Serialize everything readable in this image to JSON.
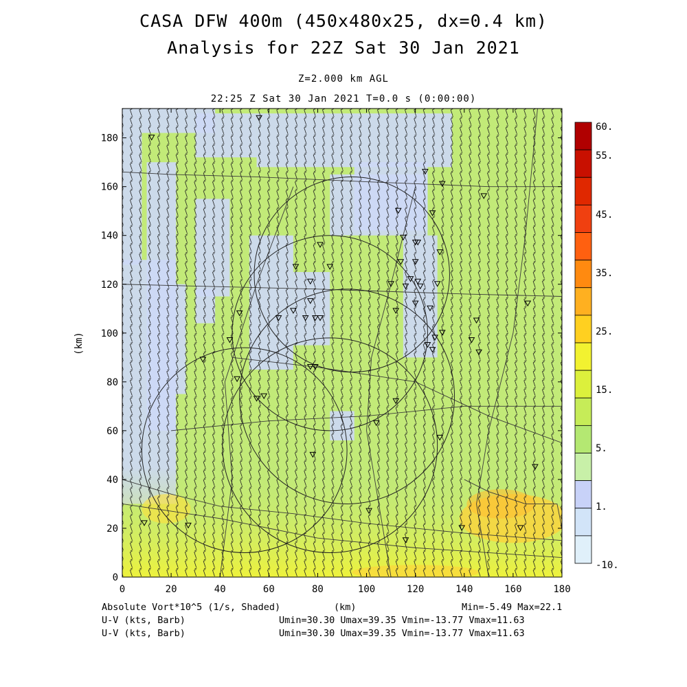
{
  "header": {
    "title_line1": "CASA DFW 400m (450x480x25, dx=0.4 km)",
    "title_line2": "Analysis for 22Z Sat 30 Jan 2021",
    "level": "Z=2.000 km AGL",
    "time_line": "22:25 Z Sat 30 Jan 2021    T=0.0 s (0:00:00)"
  },
  "footer": {
    "field_label": "Absolute Vort*10^5 (1/s, Shaded)",
    "xunit": "(km)",
    "minmax": "Min=-5.49 Max=22.1",
    "wind_label_1": "U-V (kts, Barb)",
    "wind_label_2": "U-V (kts, Barb)",
    "wind_stats_1": "Umin=30.30 Umax=39.35 Vmin=-13.77 Vmax=11.63",
    "wind_stats_2": "Umin=30.30 Umax=39.35 Vmin=-13.77 Vmax=11.63"
  },
  "chart_data": {
    "type": "heatmap",
    "xlabel": "",
    "ylabel": "(km)",
    "xlim": [
      0,
      180
    ],
    "ylim": [
      0,
      192
    ],
    "xticks": [
      "0",
      "20",
      "40",
      "60",
      "80",
      "100",
      "120",
      "140",
      "160",
      "180"
    ],
    "yticks": [
      "0",
      "20",
      "40",
      "60",
      "80",
      "100",
      "120",
      "140",
      "160",
      "180"
    ],
    "colorbar": {
      "labels": [
        "60.",
        "55.",
        "45.",
        "35.",
        "25.",
        "15.",
        "5.",
        "1.",
        "-10."
      ],
      "colors": [
        "#b00000",
        "#c81000",
        "#e02800",
        "#f04010",
        "#ff6010",
        "#ff8a10",
        "#ffb020",
        "#ffd020",
        "#f2f230",
        "#dcf03c",
        "#c6ec58",
        "#b4e872",
        "#c8f0a8",
        "#c8d2f8",
        "#d2e4f8",
        "#e0f0fa"
      ]
    },
    "field_color_default": "#c2ea78",
    "radar_circles": [
      {
        "cx": 94,
        "cy": 124,
        "r": 40
      },
      {
        "cx": 85,
        "cy": 100,
        "r": 40
      },
      {
        "cx": 92,
        "cy": 74,
        "r": 44
      },
      {
        "cx": 85,
        "cy": 54,
        "r": 44
      },
      {
        "cx": 50,
        "cy": 52,
        "r": 42
      }
    ],
    "station_markers": [
      [
        56,
        188
      ],
      [
        12,
        180
      ],
      [
        124,
        166
      ],
      [
        131,
        161
      ],
      [
        148,
        156
      ],
      [
        113,
        150
      ],
      [
        127,
        149
      ],
      [
        120,
        137
      ],
      [
        121,
        137
      ],
      [
        115,
        139
      ],
      [
        130,
        133
      ],
      [
        81,
        136
      ],
      [
        85,
        127
      ],
      [
        71,
        127
      ],
      [
        120,
        129
      ],
      [
        114,
        129
      ],
      [
        118,
        122
      ],
      [
        121,
        121
      ],
      [
        122,
        119
      ],
      [
        129,
        120
      ],
      [
        116,
        119
      ],
      [
        110,
        120
      ],
      [
        77,
        121
      ],
      [
        77,
        113
      ],
      [
        120,
        112
      ],
      [
        126,
        110
      ],
      [
        112,
        109
      ],
      [
        166,
        112
      ],
      [
        145,
        105
      ],
      [
        70,
        109
      ],
      [
        75,
        106
      ],
      [
        79,
        106
      ],
      [
        81,
        106
      ],
      [
        64,
        106
      ],
      [
        48,
        108
      ],
      [
        44,
        97
      ],
      [
        128,
        98
      ],
      [
        131,
        100
      ],
      [
        125,
        95
      ],
      [
        127,
        93
      ],
      [
        143,
        97
      ],
      [
        146,
        92
      ],
      [
        33,
        89
      ],
      [
        77,
        86
      ],
      [
        79,
        86
      ],
      [
        47,
        81
      ],
      [
        58,
        74
      ],
      [
        112,
        72
      ],
      [
        55,
        73
      ],
      [
        104,
        63
      ],
      [
        130,
        57
      ],
      [
        78,
        50
      ],
      [
        169,
        45
      ],
      [
        101,
        27
      ],
      [
        9,
        22
      ],
      [
        27,
        21
      ],
      [
        139,
        20
      ],
      [
        163,
        20
      ],
      [
        116,
        15
      ]
    ],
    "boundary_lines": [
      [
        [
          0,
          166
        ],
        [
          20,
          165
        ],
        [
          55,
          164
        ],
        [
          100,
          162
        ],
        [
          150,
          160
        ],
        [
          180,
          160
        ]
      ],
      [
        [
          0,
          120
        ],
        [
          40,
          119
        ],
        [
          80,
          118
        ],
        [
          140,
          116
        ],
        [
          180,
          115
        ]
      ],
      [
        [
          0,
          40
        ],
        [
          20,
          34
        ],
        [
          40,
          29
        ],
        [
          70,
          26
        ],
        [
          100,
          22
        ],
        [
          140,
          18
        ],
        [
          180,
          15
        ]
      ],
      [
        [
          0,
          30
        ],
        [
          40,
          24
        ],
        [
          80,
          16
        ],
        [
          120,
          12
        ],
        [
          180,
          8
        ]
      ],
      [
        [
          45,
          90
        ],
        [
          80,
          86
        ],
        [
          120,
          80
        ],
        [
          150,
          66
        ],
        [
          180,
          55
        ]
      ],
      [
        [
          20,
          60
        ],
        [
          60,
          64
        ],
        [
          100,
          66
        ],
        [
          140,
          70
        ],
        [
          180,
          70
        ]
      ],
      [
        [
          110,
          0
        ],
        [
          105,
          30
        ],
        [
          100,
          60
        ],
        [
          102,
          90
        ],
        [
          110,
          120
        ],
        [
          120,
          160
        ]
      ],
      [
        [
          40,
          0
        ],
        [
          45,
          40
        ],
        [
          42,
          80
        ],
        [
          55,
          120
        ],
        [
          70,
          160
        ]
      ],
      [
        [
          150,
          0
        ],
        [
          145,
          30
        ],
        [
          150,
          60
        ],
        [
          160,
          100
        ],
        [
          165,
          140
        ],
        [
          170,
          192
        ]
      ],
      [
        [
          140,
          40
        ],
        [
          150,
          35
        ],
        [
          165,
          30
        ],
        [
          178,
          30
        ],
        [
          180,
          20
        ]
      ]
    ],
    "barb_grid": {
      "dx_km": 3.75,
      "dy_km": 3.7
    }
  }
}
